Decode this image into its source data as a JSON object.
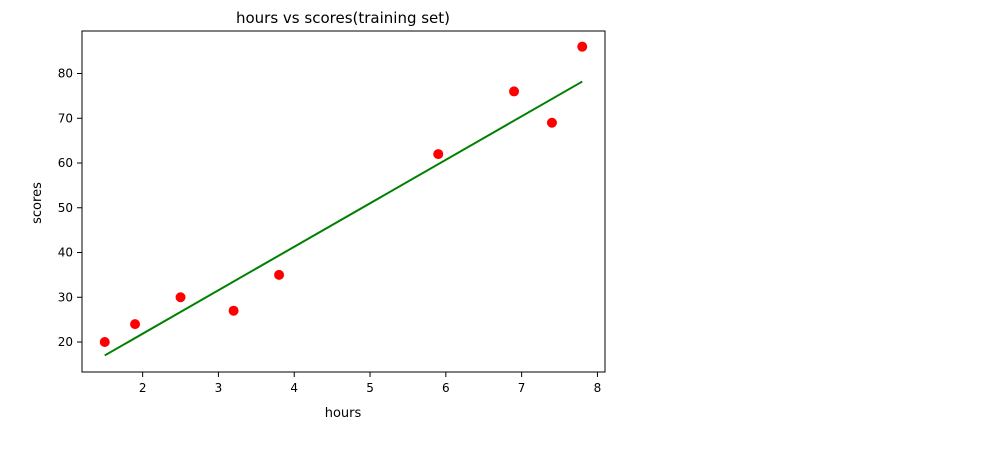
{
  "chart_data": {
    "type": "scatter",
    "title": "hours vs scores(training set)",
    "xlabel": "hours",
    "ylabel": "scores",
    "xlim": [
      1.2,
      8.1
    ],
    "ylim": [
      13.3,
      89.5
    ],
    "xticks": [
      2,
      3,
      4,
      5,
      6,
      7,
      8
    ],
    "yticks": [
      20,
      30,
      40,
      50,
      60,
      70,
      80
    ],
    "xtick_labels": [
      "2",
      "3",
      "4",
      "5",
      "6",
      "7",
      "8"
    ],
    "ytick_labels": [
      "20",
      "30",
      "40",
      "50",
      "60",
      "70",
      "80"
    ],
    "grid": false,
    "series": [
      {
        "kind": "scatter",
        "color": "#ff0000",
        "points": [
          {
            "x": 1.5,
            "y": 20
          },
          {
            "x": 1.9,
            "y": 24
          },
          {
            "x": 2.5,
            "y": 30
          },
          {
            "x": 3.2,
            "y": 27
          },
          {
            "x": 3.8,
            "y": 35
          },
          {
            "x": 5.9,
            "y": 62
          },
          {
            "x": 6.9,
            "y": 76
          },
          {
            "x": 7.4,
            "y": 69
          },
          {
            "x": 7.8,
            "y": 86
          }
        ]
      },
      {
        "kind": "line",
        "color": "#008000",
        "points": [
          {
            "x": 1.5,
            "y": 17
          },
          {
            "x": 7.8,
            "y": 78.2
          }
        ]
      }
    ]
  }
}
